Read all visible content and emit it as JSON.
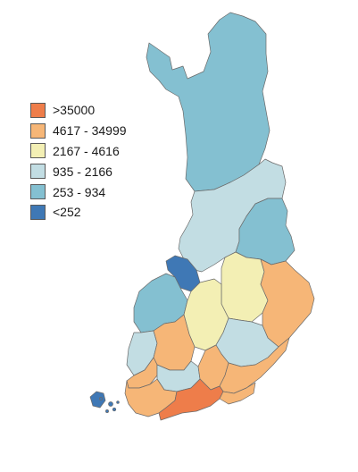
{
  "legend": {
    "items": [
      {
        "label": ">35000",
        "color": "#ee7d4a"
      },
      {
        "label": "4617 - 34999",
        "color": "#f6b677"
      },
      {
        "label": "2167 - 4616",
        "color": "#f3efb4"
      },
      {
        "label": "935 - 2166",
        "color": "#c2dde3"
      },
      {
        "label": "253 - 934",
        "color": "#84c0d1"
      },
      {
        "label": "<252",
        "color": "#3f78b5"
      }
    ]
  }
}
